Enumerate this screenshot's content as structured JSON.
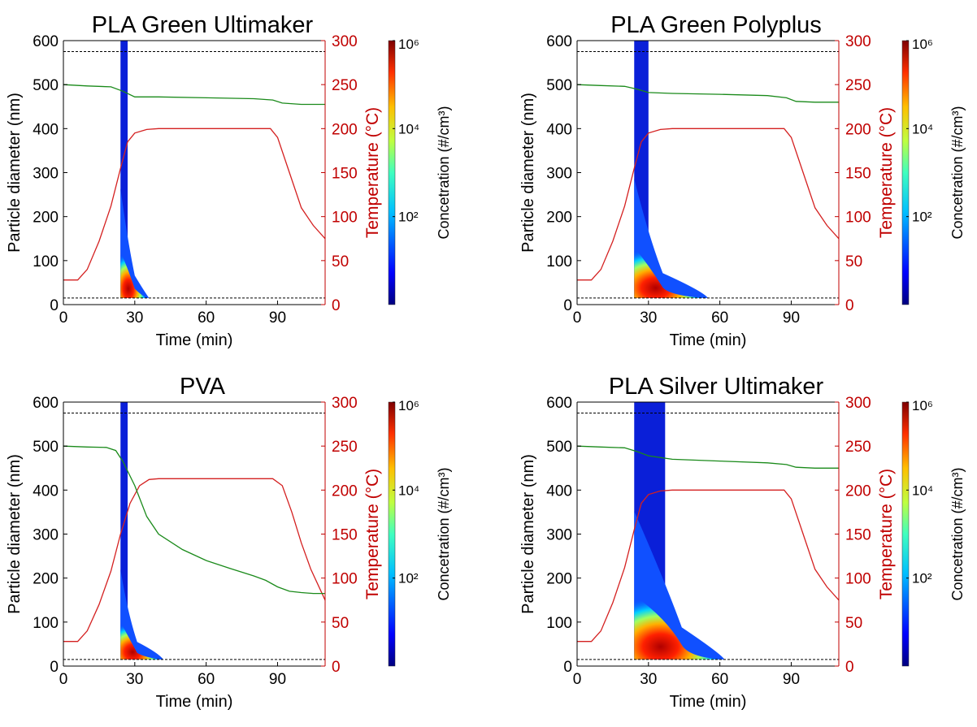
{
  "figure": {
    "colorbar": {
      "label": "Concetration (#/cm³)",
      "tick_labels": [
        "10⁶",
        "10⁴",
        "10²"
      ],
      "tick_exponents": [
        6,
        4,
        2
      ],
      "scale": "log",
      "colormap": "jet"
    },
    "colors": {
      "axis_left": "#000000",
      "axis_right": "#c00000",
      "temperature_line": "#d42020",
      "diameter_line": "#1a8a1a",
      "reference_line": "#000000"
    }
  },
  "chart_data": [
    {
      "type": "heatmap",
      "title": "PLA Green Ultimaker",
      "xlabel": "Time (min)",
      "ylabel": "Particle diameter (nm)",
      "y2label": "Temperature (°C)",
      "xlim": [
        0,
        110
      ],
      "ylim": [
        0,
        600
      ],
      "y2lim": [
        0,
        300
      ],
      "xticks": [
        0,
        30,
        60,
        90
      ],
      "yticks": [
        0,
        100,
        200,
        300,
        400,
        500,
        600
      ],
      "y2ticks": [
        0,
        50,
        100,
        150,
        200,
        250,
        300
      ],
      "reference_lines_nm": [
        15,
        575
      ],
      "series": [
        {
          "axis": "right",
          "color": "red",
          "x": [
            0,
            6,
            10,
            15,
            20,
            24,
            27,
            30,
            35,
            40,
            50,
            60,
            70,
            80,
            87,
            90,
            95,
            100,
            105,
            110
          ],
          "y": [
            28,
            28,
            40,
            72,
            112,
            155,
            185,
            195,
            199,
            200,
            200,
            200,
            200,
            200,
            200,
            190,
            150,
            110,
            90,
            75
          ]
        },
        {
          "axis": "left",
          "color": "green",
          "x": [
            0,
            10,
            20,
            25,
            30,
            40,
            60,
            80,
            88,
            92,
            100,
            110
          ],
          "y": [
            500,
            497,
            495,
            485,
            472,
            472,
            470,
            468,
            465,
            458,
            455,
            455
          ]
        }
      ],
      "plume": {
        "start": 24,
        "full_width_end": 27,
        "core_end": 30,
        "tail_end": 36,
        "core_top_nm": 120
      }
    },
    {
      "type": "heatmap",
      "title": "PLA Green Polyplus",
      "xlabel": "Time (min)",
      "ylabel": "Particle diameter (nm)",
      "y2label": "Temperature (°C)",
      "xlim": [
        0,
        110
      ],
      "ylim": [
        0,
        600
      ],
      "y2lim": [
        0,
        300
      ],
      "xticks": [
        0,
        30,
        60,
        90
      ],
      "yticks": [
        0,
        100,
        200,
        300,
        400,
        500,
        600
      ],
      "y2ticks": [
        0,
        50,
        100,
        150,
        200,
        250,
        300
      ],
      "reference_lines_nm": [
        15,
        575
      ],
      "series": [
        {
          "axis": "right",
          "color": "red",
          "x": [
            0,
            6,
            10,
            15,
            20,
            24,
            27,
            30,
            35,
            40,
            50,
            60,
            70,
            80,
            87,
            90,
            95,
            100,
            105,
            110
          ],
          "y": [
            28,
            28,
            40,
            72,
            112,
            155,
            185,
            195,
            199,
            200,
            200,
            200,
            200,
            200,
            200,
            190,
            150,
            110,
            90,
            75
          ]
        },
        {
          "axis": "left",
          "color": "green",
          "x": [
            0,
            10,
            20,
            25,
            30,
            40,
            60,
            80,
            88,
            92,
            100,
            110
          ],
          "y": [
            500,
            498,
            496,
            490,
            482,
            480,
            478,
            475,
            470,
            462,
            460,
            460
          ]
        }
      ],
      "plume": {
        "start": 24,
        "full_width_end": 30,
        "core_end": 36,
        "tail_end": 55,
        "core_top_nm": 130
      }
    },
    {
      "type": "heatmap",
      "title": "PVA",
      "xlabel": "Time (min)",
      "ylabel": "Particle diameter (nm)",
      "y2label": "Temperature (°C)",
      "xlim": [
        0,
        110
      ],
      "ylim": [
        0,
        600
      ],
      "y2lim": [
        0,
        300
      ],
      "xticks": [
        0,
        30,
        60,
        90
      ],
      "yticks": [
        0,
        100,
        200,
        300,
        400,
        500,
        600
      ],
      "y2ticks": [
        0,
        50,
        100,
        150,
        200,
        250,
        300
      ],
      "reference_lines_nm": [
        15,
        575
      ],
      "series": [
        {
          "axis": "right",
          "color": "red",
          "x": [
            0,
            6,
            10,
            15,
            20,
            24,
            28,
            32,
            36,
            40,
            50,
            60,
            70,
            80,
            88,
            92,
            96,
            100,
            104,
            110
          ],
          "y": [
            28,
            28,
            40,
            70,
            108,
            150,
            185,
            205,
            212,
            213,
            213,
            213,
            213,
            213,
            213,
            205,
            175,
            140,
            110,
            75
          ]
        },
        {
          "axis": "left",
          "color": "green",
          "x": [
            0,
            10,
            18,
            22,
            25,
            30,
            35,
            40,
            50,
            60,
            70,
            80,
            85,
            90,
            95,
            100,
            105,
            110
          ],
          "y": [
            500,
            498,
            497,
            490,
            465,
            410,
            340,
            300,
            265,
            240,
            222,
            205,
            195,
            180,
            170,
            167,
            165,
            165
          ]
        }
      ],
      "plume": {
        "start": 24,
        "full_width_end": 27,
        "core_end": 31,
        "tail_end": 42,
        "core_top_nm": 100
      }
    },
    {
      "type": "heatmap",
      "title": "PLA Silver Ultimaker",
      "xlabel": "Time (min)",
      "ylabel": "Particle diameter (nm)",
      "y2label": "Temperature (°C)",
      "xlim": [
        0,
        110
      ],
      "ylim": [
        0,
        600
      ],
      "y2lim": [
        0,
        300
      ],
      "xticks": [
        0,
        30,
        60,
        90
      ],
      "yticks": [
        0,
        100,
        200,
        300,
        400,
        500,
        600
      ],
      "y2ticks": [
        0,
        50,
        100,
        150,
        200,
        250,
        300
      ],
      "reference_lines_nm": [
        15,
        575
      ],
      "series": [
        {
          "axis": "right",
          "color": "red",
          "x": [
            0,
            6,
            10,
            15,
            20,
            24,
            27,
            30,
            35,
            40,
            50,
            60,
            70,
            80,
            87,
            90,
            95,
            100,
            105,
            110
          ],
          "y": [
            28,
            28,
            40,
            72,
            112,
            155,
            185,
            195,
            199,
            200,
            200,
            200,
            200,
            200,
            200,
            190,
            150,
            110,
            90,
            75
          ]
        },
        {
          "axis": "left",
          "color": "green",
          "x": [
            0,
            10,
            20,
            25,
            30,
            40,
            60,
            80,
            88,
            92,
            100,
            110
          ],
          "y": [
            500,
            498,
            496,
            488,
            478,
            470,
            466,
            462,
            458,
            452,
            450,
            450
          ]
        }
      ],
      "plume": {
        "start": 24,
        "full_width_end": 37,
        "core_end": 44,
        "tail_end": 62,
        "core_top_nm": 160
      }
    }
  ]
}
